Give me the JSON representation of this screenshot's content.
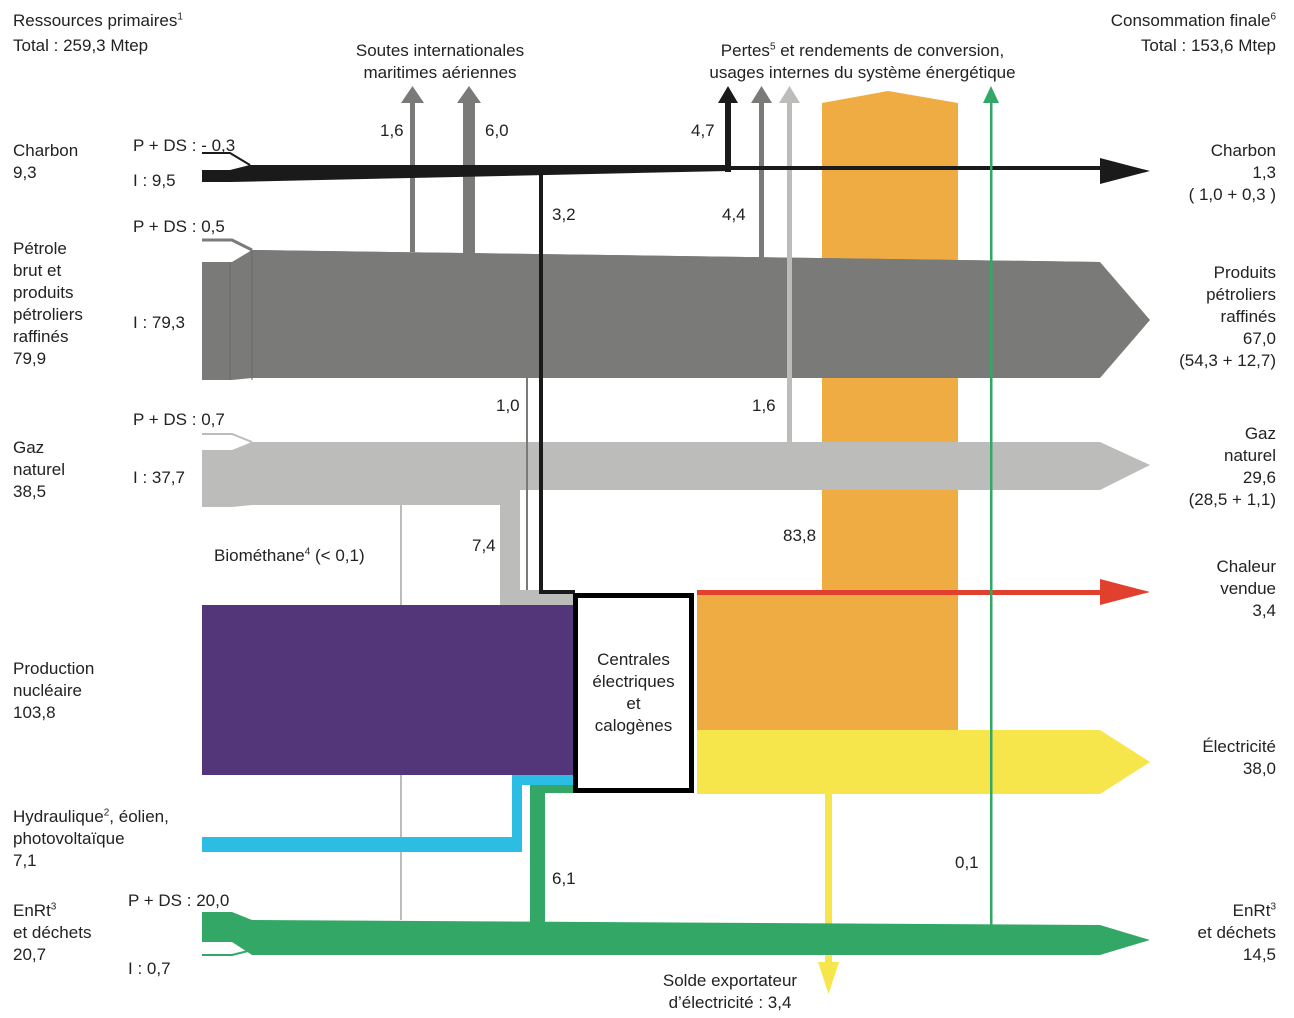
{
  "header": {
    "left_title": "Ressources primaires",
    "left_title_sup": "1",
    "left_total": "Total : 259,3 Mtep",
    "right_title": "Consommation finale",
    "right_title_sup": "6",
    "right_total": "Total : 153,6 Mtep"
  },
  "top_labels": {
    "soutes_line1": "Soutes internationales",
    "soutes_line2": "maritimes  aériennes",
    "pertes_line1_a": "Pertes",
    "pertes_line1_sup": "5",
    "pertes_line1_b": " et rendements de conversion,",
    "pertes_line2": "usages internes du système énergétique"
  },
  "sources": {
    "charbon": {
      "name": "Charbon",
      "value": "9,3",
      "pds": "P + DS : - 0,3",
      "imp": "I : 9,5"
    },
    "petrole": {
      "lines": [
        "Pétrole",
        "brut et",
        "produits",
        "pétroliers",
        "raffinés",
        "79,9"
      ],
      "pds": "P + DS : 0,5",
      "imp": "I : 79,3"
    },
    "gaz": {
      "lines": [
        "Gaz",
        "naturel",
        "38,5"
      ],
      "pds": "P + DS : 0,7",
      "imp": "I : 37,7"
    },
    "biomethane": {
      "a": "Biométhane",
      "sup": "4",
      "b": " (< 0,1)"
    },
    "nucleaire": {
      "lines": [
        "Production",
        "nucléaire",
        "103,8"
      ]
    },
    "hydraulique": {
      "a": "Hydraulique",
      "sup": "2",
      "b": ", éolien,",
      "line2": "photovoltaïque",
      "line3": "7,1"
    },
    "enrt": {
      "a": "EnRt",
      "sup": "3",
      "line2": "et déchets",
      "line3": "20,7",
      "pds": "P + DS : 20,0",
      "imp": "I : 0,7"
    }
  },
  "center_box": {
    "lines": [
      "Centrales",
      "électriques",
      "et",
      "calogènes"
    ]
  },
  "destinations": {
    "charbon": {
      "lines": [
        "Charbon",
        "1,3",
        "( 1,0 + 0,3 )"
      ]
    },
    "petrole": {
      "lines": [
        "Produits",
        "pétroliers",
        "raffinés",
        "67,0",
        "(54,3 + 12,7)"
      ]
    },
    "gaz": {
      "lines": [
        "Gaz",
        "naturel",
        "29,6",
        "(28,5 + 1,1)"
      ]
    },
    "chaleur": {
      "lines": [
        "Chaleur",
        "vendue",
        "3,4"
      ]
    },
    "electricite": {
      "lines": [
        "Électricité",
        "38,0"
      ]
    },
    "enrt": {
      "a": "EnRt",
      "sup": "3",
      "line2": "et déchets",
      "line3": "14,5"
    },
    "solde": {
      "line1": "Solde exportateur",
      "line2": "d’électricité : 3,4"
    }
  },
  "flow_values": {
    "soute_maritime": "1,6",
    "soute_aerienne": "6,0",
    "pertes_charbon": "4,7",
    "charbon_to_centrales": "3,2",
    "pertes_petrole": "4,4",
    "petrole_to_centrales": "1,0",
    "pertes_gaz": "1,6",
    "gaz_to_centrales": "7,4",
    "pertes_centrales": "83,8",
    "enrt_to_centrales": "6,1",
    "pertes_enrt": "0,1"
  },
  "colors": {
    "charbon": "#1a1a1a",
    "petrole": "#7a7b79",
    "gaz": "#bcbdbb",
    "nucleaire": "#53357a",
    "hydraulique": "#2bbde3",
    "enrt": "#33a866",
    "chaleur": "#e0402d",
    "electricite": "#f6e54b",
    "pertes": "#eeac42"
  }
}
